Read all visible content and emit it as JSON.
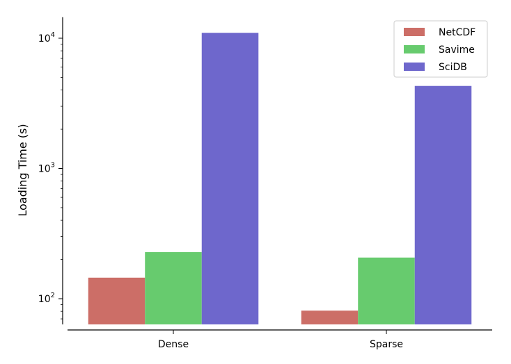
{
  "chart_data": {
    "type": "bar",
    "title": "",
    "xlabel": "",
    "ylabel": "Loading Time (s)",
    "yscale": "log",
    "ylim": [
      62,
      14500
    ],
    "categories": [
      "Dense",
      "Sparse"
    ],
    "series": [
      {
        "name": "NetCDF",
        "values": [
          145,
          81
        ],
        "color": "#cc6e67"
      },
      {
        "name": "Savime",
        "values": [
          228,
          207
        ],
        "color": "#67cb6e"
      },
      {
        "name": "SciDB",
        "values": [
          11000,
          4300
        ],
        "color": "#6e67cc"
      }
    ],
    "y_ticks": [
      {
        "value": 100,
        "base": "10",
        "exp": "2"
      },
      {
        "value": 1000,
        "base": "10",
        "exp": "3"
      },
      {
        "value": 10000,
        "base": "10",
        "exp": "4"
      }
    ],
    "legend_position": "top-right",
    "grid": false
  }
}
